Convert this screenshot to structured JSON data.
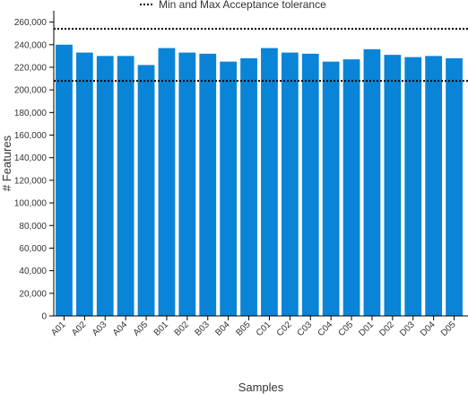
{
  "chart_data": {
    "type": "bar",
    "categories": [
      "A01",
      "A02",
      "A03",
      "A04",
      "A05",
      "B01",
      "B02",
      "B03",
      "B04",
      "B05",
      "C01",
      "C02",
      "C03",
      "C04",
      "C05",
      "D01",
      "D02",
      "D03",
      "D04",
      "D05"
    ],
    "values": [
      240000,
      233000,
      230000,
      230000,
      222000,
      237000,
      233000,
      232000,
      225000,
      228000,
      237000,
      233000,
      232000,
      225000,
      227000,
      236000,
      231000,
      229000,
      230000,
      228000
    ],
    "xlabel": "Samples",
    "ylabel": "# Features",
    "ylim": [
      0,
      270000
    ],
    "yticks": [
      0,
      20000,
      40000,
      60000,
      80000,
      100000,
      120000,
      140000,
      160000,
      180000,
      200000,
      220000,
      240000,
      260000
    ],
    "reference_lines": [
      {
        "name": "Min and Max Acceptance tolerance",
        "values": [
          208000,
          254000
        ],
        "style": "dotted"
      }
    ],
    "legend": {
      "label": "Min and Max Acceptance tolerance",
      "placement": "top"
    },
    "grid": false,
    "colors": {
      "bar": "#0a84d6",
      "reference_line": "#000000",
      "axis": "#000000",
      "text": "#333333"
    }
  }
}
